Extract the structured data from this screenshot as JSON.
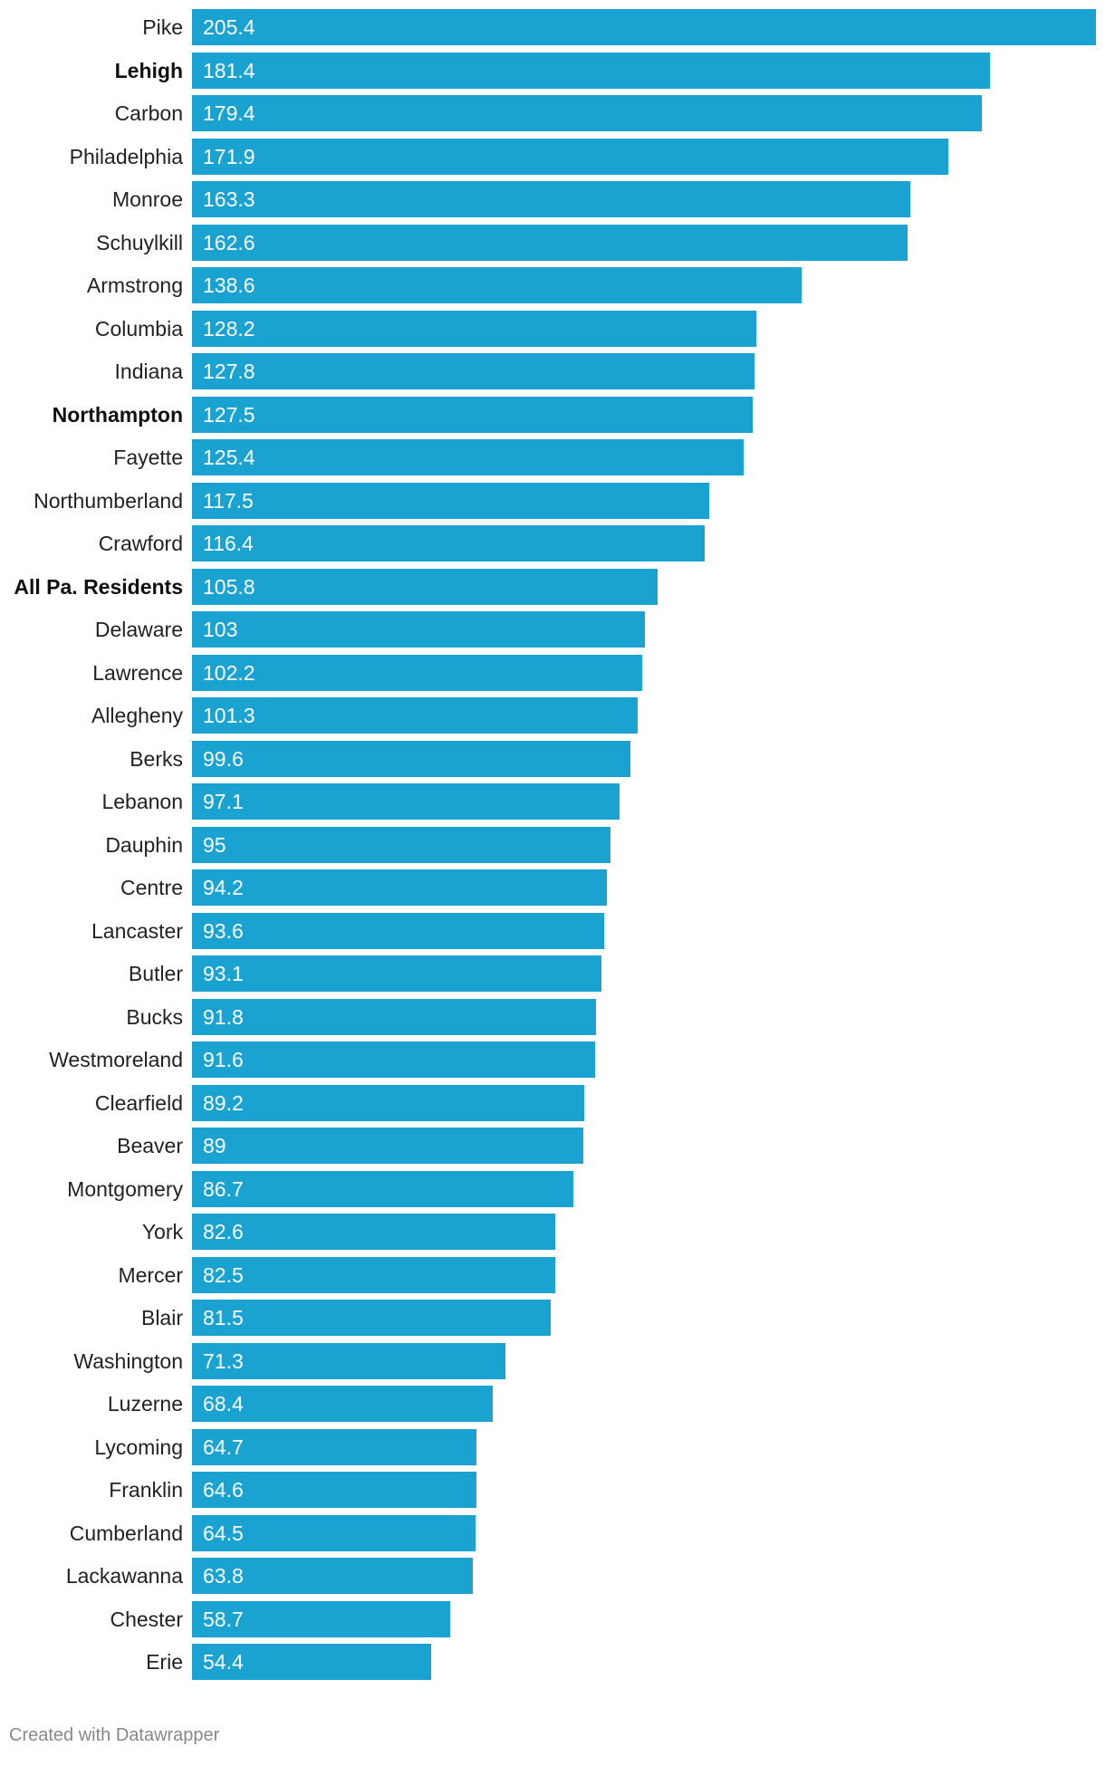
{
  "chart_data": {
    "type": "bar",
    "orientation": "horizontal",
    "bar_color": "#1aa3d1",
    "label_color": "#222222",
    "value_label_color": "#ffffff",
    "xlim": [
      0,
      205.4
    ],
    "categories": [
      "Pike",
      "Lehigh",
      "Carbon",
      "Philadelphia",
      "Monroe",
      "Schuylkill",
      "Armstrong",
      "Columbia",
      "Indiana",
      "Northampton",
      "Fayette",
      "Northumberland",
      "Crawford",
      "All Pa. Residents",
      "Delaware",
      "Lawrence",
      "Allegheny",
      "Berks",
      "Lebanon",
      "Dauphin",
      "Centre",
      "Lancaster",
      "Butler",
      "Bucks",
      "Westmoreland",
      "Clearfield",
      "Beaver",
      "Montgomery",
      "York",
      "Mercer",
      "Blair",
      "Washington",
      "Luzerne",
      "Lycoming",
      "Franklin",
      "Cumberland",
      "Lackawanna",
      "Chester",
      "Erie"
    ],
    "values": [
      205.4,
      181.4,
      179.4,
      171.9,
      163.3,
      162.6,
      138.6,
      128.2,
      127.8,
      127.5,
      125.4,
      117.5,
      116.4,
      105.8,
      103,
      102.2,
      101.3,
      99.6,
      97.1,
      95,
      94.2,
      93.6,
      93.1,
      91.8,
      91.6,
      89.2,
      89,
      86.7,
      82.6,
      82.5,
      81.5,
      71.3,
      68.4,
      64.7,
      64.6,
      64.5,
      63.8,
      58.7,
      54.4
    ],
    "value_labels": [
      "205.4",
      "181.4",
      "179.4",
      "171.9",
      "163.3",
      "162.6",
      "138.6",
      "128.2",
      "127.8",
      "127.5",
      "125.4",
      "117.5",
      "116.4",
      "105.8",
      "103",
      "102.2",
      "101.3",
      "99.6",
      "97.1",
      "95",
      "94.2",
      "93.6",
      "93.1",
      "91.8",
      "91.6",
      "89.2",
      "89",
      "86.7",
      "82.6",
      "82.5",
      "81.5",
      "71.3",
      "68.4",
      "64.7",
      "64.6",
      "64.5",
      "63.8",
      "58.7",
      "54.4"
    ],
    "bold_categories": [
      "Lehigh",
      "Northampton",
      "All Pa. Residents"
    ]
  },
  "footer": {
    "credit": "Created with Datawrapper"
  }
}
